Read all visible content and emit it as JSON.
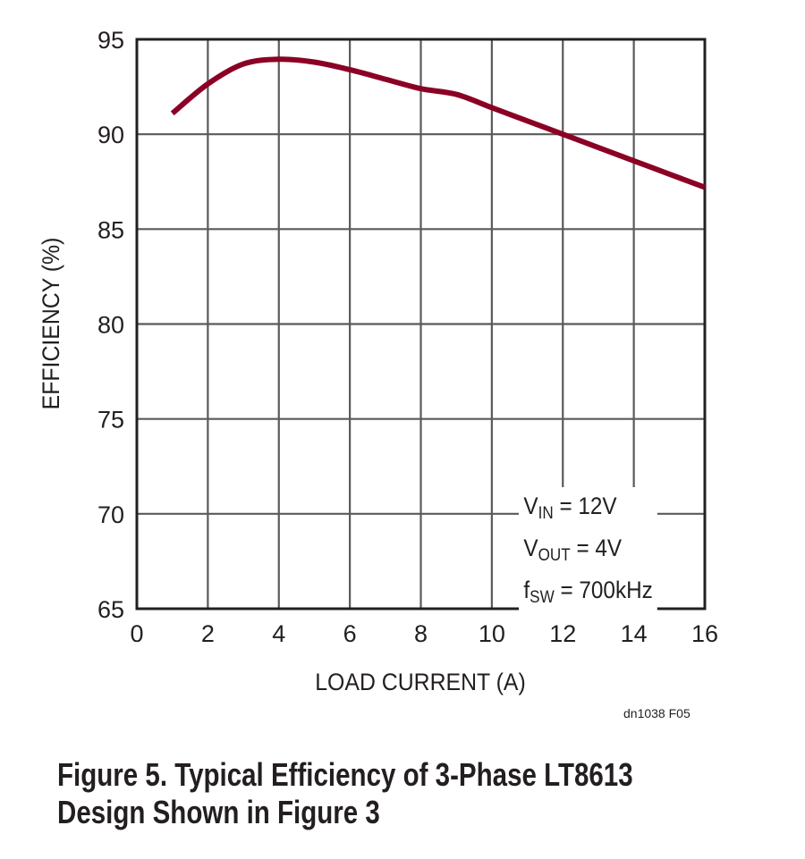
{
  "chart_data": {
    "type": "line",
    "xlabel": "LOAD CURRENT (A)",
    "ylabel": "EFFICIENCY (%)",
    "xlim": [
      0,
      16
    ],
    "ylim": [
      65,
      95
    ],
    "xticks": [
      0,
      2,
      4,
      6,
      8,
      10,
      12,
      14,
      16
    ],
    "yticks": [
      65,
      70,
      75,
      80,
      85,
      90,
      95
    ],
    "grid": true,
    "series": [
      {
        "color": "#8b0025",
        "x": [
          1,
          2,
          3,
          4,
          5,
          6,
          7,
          8,
          9,
          10,
          11,
          12,
          13,
          14,
          15,
          16
        ],
        "y": [
          91.1,
          92.65,
          93.7,
          93.95,
          93.8,
          93.4,
          92.9,
          92.4,
          92.1,
          91.4,
          90.7,
          90.0,
          89.3,
          88.6,
          87.9,
          87.2
        ]
      }
    ],
    "annotation": {
      "vin": {
        "main": "V",
        "sub": "IN",
        "rest": " = 12V"
      },
      "vout": {
        "main": "V",
        "sub": "OUT",
        "rest": " = 4V"
      },
      "fsw": {
        "main": "f",
        "sub": "SW",
        "rest": " = 700kHz"
      }
    }
  },
  "figure_code": "dn1038 F05",
  "caption": {
    "line1": "Figure 5. Typical Efficiency of 3-Phase LT8613",
    "line2": "Design Shown in Figure 3"
  }
}
